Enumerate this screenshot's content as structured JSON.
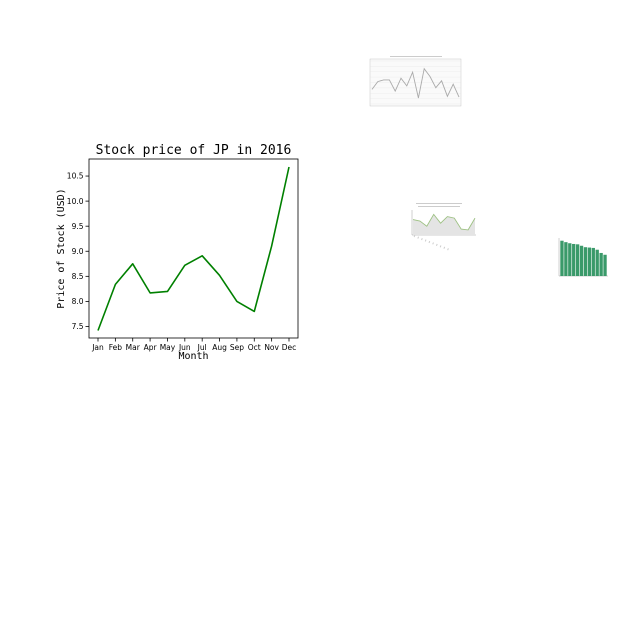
{
  "chart_data": [
    {
      "type": "line",
      "title": "Stock price of JP in 2016",
      "xlabel": "Month",
      "ylabel": "Price of Stock (USD)",
      "categories": [
        "Jan",
        "Feb",
        "Mar",
        "Apr",
        "May",
        "Jun",
        "Jul",
        "Aug",
        "Sep",
        "Oct",
        "Nov",
        "Dec"
      ],
      "values": [
        7.42,
        8.34,
        8.75,
        8.17,
        8.2,
        8.72,
        8.91,
        8.52,
        8.0,
        7.8,
        9.1,
        10.68
      ],
      "yticks": [
        7.5,
        8.0,
        8.5,
        9.0,
        9.5,
        10.0,
        10.5
      ],
      "ylim": [
        7.27,
        10.84
      ],
      "grid": false,
      "color": "#008000"
    },
    {
      "type": "line",
      "title": "",
      "xlabel": "",
      "ylabel": "",
      "values": [
        3.2,
        4.1,
        4.3,
        4.3,
        3.0,
        4.5,
        3.6,
        5.2,
        2.2,
        5.6,
        4.7,
        3.4,
        4.2,
        2.4,
        3.8,
        2.3
      ],
      "ylim": [
        1.5,
        6.5
      ],
      "grid": true,
      "color": "#aaaaaa"
    },
    {
      "type": "area",
      "title": "",
      "xlabel": "",
      "ylabel": "",
      "values": [
        3.9,
        3.7,
        3.0,
        4.6,
        3.4,
        4.3,
        4.1,
        2.6,
        2.5,
        4.1
      ],
      "ylim": [
        1.8,
        5.2
      ],
      "grid": false,
      "color": "#9dc183"
    },
    {
      "type": "bar",
      "title": "",
      "xlabel": "",
      "ylabel": "",
      "values": [
        9.8,
        9.4,
        9.1,
        8.9,
        8.8,
        8.4,
        8.0,
        7.9,
        7.8,
        7.3,
        6.4,
        5.9
      ],
      "ylim": [
        0,
        10
      ],
      "grid": false,
      "color": "#3a9a6a"
    }
  ]
}
